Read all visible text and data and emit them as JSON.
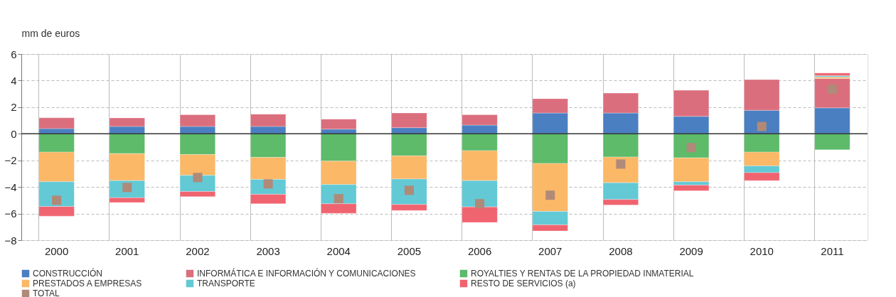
{
  "chart_data": {
    "type": "bar",
    "stacked": true,
    "ylabel": "mm de euros",
    "categories": [
      "2000",
      "2001",
      "2002",
      "2003",
      "2004",
      "2005",
      "2006",
      "2007",
      "2008",
      "2009",
      "2010",
      "2011"
    ],
    "series": [
      {
        "name": "CONSTRUCCIÓN",
        "color": "#4a7fc1",
        "values": [
          0.39,
          0.55,
          0.55,
          0.55,
          0.35,
          0.46,
          0.65,
          1.56,
          1.56,
          1.31,
          1.77,
          1.95
        ]
      },
      {
        "name": "INFORMÁTICA E INFORMACIÓN Y COMUNICACIONES",
        "color": "#db6e7d",
        "values": [
          0.81,
          0.64,
          0.88,
          0.92,
          0.75,
          1.1,
          0.78,
          1.08,
          1.5,
          1.96,
          2.3,
          2.21
        ]
      },
      {
        "name": "ROYALTIES Y RENTAS DE LA PROPIEDAD INMATERIAL",
        "color": "#5dbb6a",
        "values": [
          -1.38,
          -1.49,
          -1.56,
          -1.77,
          -2.05,
          -1.66,
          -1.27,
          -2.23,
          -1.75,
          -1.81,
          -1.38,
          -1.2
        ]
      },
      {
        "name": "PRESTADOS A EMPRESAS",
        "color": "#fbb867",
        "values": [
          -2.23,
          -2.03,
          -1.57,
          -1.66,
          -1.77,
          -1.74,
          -2.25,
          -3.61,
          -1.93,
          -1.8,
          -1.04,
          0.12
        ]
      },
      {
        "name": "TRANSPORTE",
        "color": "#62c9d5",
        "values": [
          -1.86,
          -1.29,
          -1.21,
          -1.12,
          -1.44,
          -1.91,
          -1.98,
          -1.01,
          -1.26,
          -0.25,
          -0.5,
          0.09
        ]
      },
      {
        "name": "RESTO DE SERVICIOS (a)",
        "color": "#f06470",
        "values": [
          -0.72,
          -0.36,
          -0.39,
          -0.71,
          -0.72,
          -0.46,
          -1.17,
          -0.46,
          -0.42,
          -0.42,
          -0.6,
          0.2
        ]
      },
      {
        "name": "TOTAL",
        "type": "scatter",
        "marker": "square",
        "color": "#b08a78",
        "values": [
          -5.0,
          -4.04,
          -3.29,
          -3.77,
          -4.88,
          -4.25,
          -5.26,
          -4.62,
          -2.28,
          -1.04,
          0.55,
          3.35
        ]
      }
    ],
    "ylim": [
      -8,
      6
    ],
    "yticks": [
      -8,
      -6,
      -4,
      -2,
      0,
      2,
      4,
      6
    ],
    "ref_lines": [
      {
        "axis": "y",
        "value": 0
      }
    ],
    "grid": true,
    "legend": "bottom"
  }
}
